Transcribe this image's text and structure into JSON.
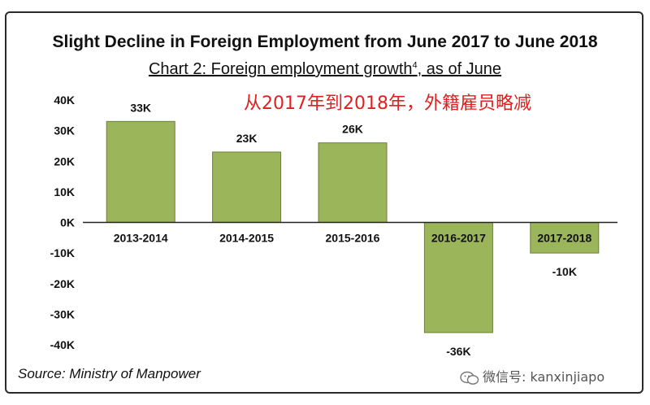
{
  "chart_data": {
    "type": "bar",
    "title": "Slight Decline in Foreign Employment from June 2017 to June 2018",
    "subtitle": "Chart 2: Foreign employment growth",
    "subtitle_sup": "4",
    "subtitle_suffix": ", as of June",
    "annotation": "从2017年到2018年，外籍雇员略减",
    "categories": [
      "2013-2014",
      "2014-2015",
      "2015-2016",
      "2016-2017",
      "2017-2018"
    ],
    "values": [
      33,
      23,
      26,
      -36,
      -10
    ],
    "data_labels": [
      "33K",
      "23K",
      "26K",
      "-36K",
      "-10K"
    ],
    "ylim": [
      -40,
      40
    ],
    "yticks": [
      40,
      30,
      20,
      10,
      0,
      -10,
      -20,
      -30,
      -40
    ],
    "ytick_labels": [
      "40K",
      "30K",
      "20K",
      "10K",
      "0K",
      "-10K",
      "-20K",
      "-30K",
      "-40K"
    ],
    "bar_color": "#9bb55a",
    "bar_edge_color": "#6b7f3a",
    "grid": false,
    "legend": "none",
    "source": "Source: Ministry of Manpower"
  },
  "watermark": {
    "icon": "wechat-icon",
    "text": "微信号: kanxinjiapo"
  }
}
